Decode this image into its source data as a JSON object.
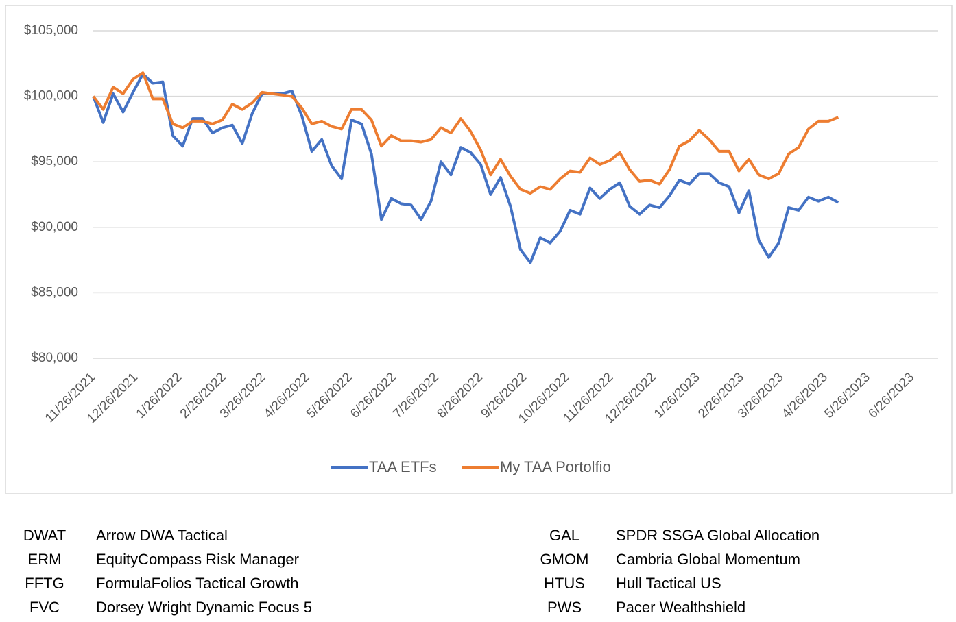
{
  "chart_data": {
    "type": "line",
    "x": [
      "11/26/2021",
      "12/3/2021",
      "12/10/2021",
      "12/17/2021",
      "12/24/2021",
      "12/31/2021",
      "1/7/2022",
      "1/14/2022",
      "1/21/2022",
      "1/28/2022",
      "2/4/2022",
      "2/11/2022",
      "2/18/2022",
      "2/25/2022",
      "3/4/2022",
      "3/11/2022",
      "3/18/2022",
      "3/25/2022",
      "4/1/2022",
      "4/8/2022",
      "4/15/2022",
      "4/22/2022",
      "4/29/2022",
      "5/6/2022",
      "5/13/2022",
      "5/20/2022",
      "5/27/2022",
      "6/3/2022",
      "6/10/2022",
      "6/17/2022",
      "6/24/2022",
      "7/1/2022",
      "7/8/2022",
      "7/15/2022",
      "7/22/2022",
      "7/29/2022",
      "8/5/2022",
      "8/12/2022",
      "8/19/2022",
      "8/26/2022",
      "9/2/2022",
      "9/9/2022",
      "9/16/2022",
      "9/23/2022",
      "9/30/2022",
      "10/7/2022",
      "10/14/2022",
      "10/21/2022",
      "10/28/2022",
      "11/4/2022",
      "11/11/2022",
      "11/18/2022",
      "11/25/2022",
      "12/2/2022",
      "12/9/2022",
      "12/16/2022",
      "12/23/2022",
      "12/30/2022",
      "1/6/2023",
      "1/13/2023",
      "1/20/2023",
      "1/27/2023",
      "2/3/2023",
      "2/10/2023",
      "2/17/2023",
      "2/24/2023",
      "3/3/2023",
      "3/10/2023",
      "3/17/2023",
      "3/24/2023",
      "3/31/2023",
      "4/7/2023",
      "4/14/2023",
      "4/21/2023",
      "4/28/2023",
      "5/5/2023"
    ],
    "series": [
      {
        "name": "TAA ETFs",
        "color": "#4472c4",
        "values": [
          100000,
          98000,
          100200,
          98800,
          100300,
          101700,
          101000,
          101100,
          97000,
          96200,
          98300,
          98300,
          97200,
          97600,
          97800,
          96400,
          98700,
          100200,
          100200,
          100200,
          100400,
          98500,
          95800,
          96700,
          94700,
          93700,
          98200,
          97900,
          95600,
          90600,
          92200,
          91800,
          91700,
          90600,
          92000,
          95000,
          94000,
          96100,
          95700,
          94800,
          92500,
          93800,
          91600,
          88300,
          87300,
          89200,
          88800,
          89700,
          91300,
          91000,
          93000,
          92200,
          92900,
          93400,
          91600,
          91000,
          91700,
          91500,
          92400,
          93600,
          93300,
          94100,
          94100,
          93400,
          93100,
          91100,
          92800,
          89000,
          87700,
          88800,
          91500,
          91300,
          92300,
          92000,
          92300,
          91900
        ]
      },
      {
        "name": "My TAA Portolfio",
        "color": "#ed7d31",
        "values": [
          100000,
          99000,
          100700,
          100200,
          101300,
          101800,
          99800,
          99800,
          97900,
          97600,
          98100,
          98100,
          97900,
          98200,
          99400,
          99000,
          99500,
          100300,
          100200,
          100100,
          100000,
          99100,
          97900,
          98100,
          97700,
          97500,
          99000,
          99000,
          98200,
          96200,
          97000,
          96600,
          96600,
          96500,
          96700,
          97600,
          97200,
          98300,
          97300,
          95900,
          94000,
          95200,
          93900,
          92900,
          92600,
          93100,
          92900,
          93700,
          94300,
          94200,
          95300,
          94800,
          95100,
          95700,
          94400,
          93500,
          93600,
          93300,
          94400,
          96200,
          96600,
          97400,
          96700,
          95800,
          95800,
          94300,
          95200,
          94000,
          93700,
          94100,
          95600,
          96100,
          97500,
          98100,
          98100,
          98400
        ]
      }
    ],
    "xlim": [
      "11/26/2021",
      "6/26/2023"
    ],
    "xticks": [
      "11/26/2021",
      "12/26/2021",
      "1/26/2022",
      "2/26/2022",
      "3/26/2022",
      "4/26/2022",
      "5/26/2022",
      "6/26/2022",
      "7/26/2022",
      "8/26/2022",
      "9/26/2022",
      "10/26/2022",
      "11/26/2022",
      "12/26/2022",
      "1/26/2023",
      "2/26/2023",
      "3/26/2023",
      "4/26/2023",
      "5/26/2023",
      "6/26/2023"
    ],
    "ylim": [
      80000,
      105000
    ],
    "yticks": [
      {
        "value": 80000,
        "label": "$80,000"
      },
      {
        "value": 85000,
        "label": "$85,000"
      },
      {
        "value": 90000,
        "label": "$90,000"
      },
      {
        "value": 95000,
        "label": "$95,000"
      },
      {
        "value": 100000,
        "label": "$100,000"
      },
      {
        "value": 105000,
        "label": "$105,000"
      }
    ],
    "grid": true,
    "legend": "bottom"
  },
  "table": {
    "rows": [
      [
        "DWAT",
        "Arrow DWA Tactical",
        "GAL",
        "SPDR SSGA Global Allocation"
      ],
      [
        "ERM",
        "EquityCompass Risk Manager",
        "GMOM",
        "Cambria Global Momentum"
      ],
      [
        "FFTG",
        "FormulaFolios Tactical Growth",
        "HTUS",
        "Hull Tactical US"
      ],
      [
        "FVC",
        "Dorsey Wright Dynamic Focus 5",
        "PWS",
        "Pacer Wealthshield"
      ]
    ]
  }
}
